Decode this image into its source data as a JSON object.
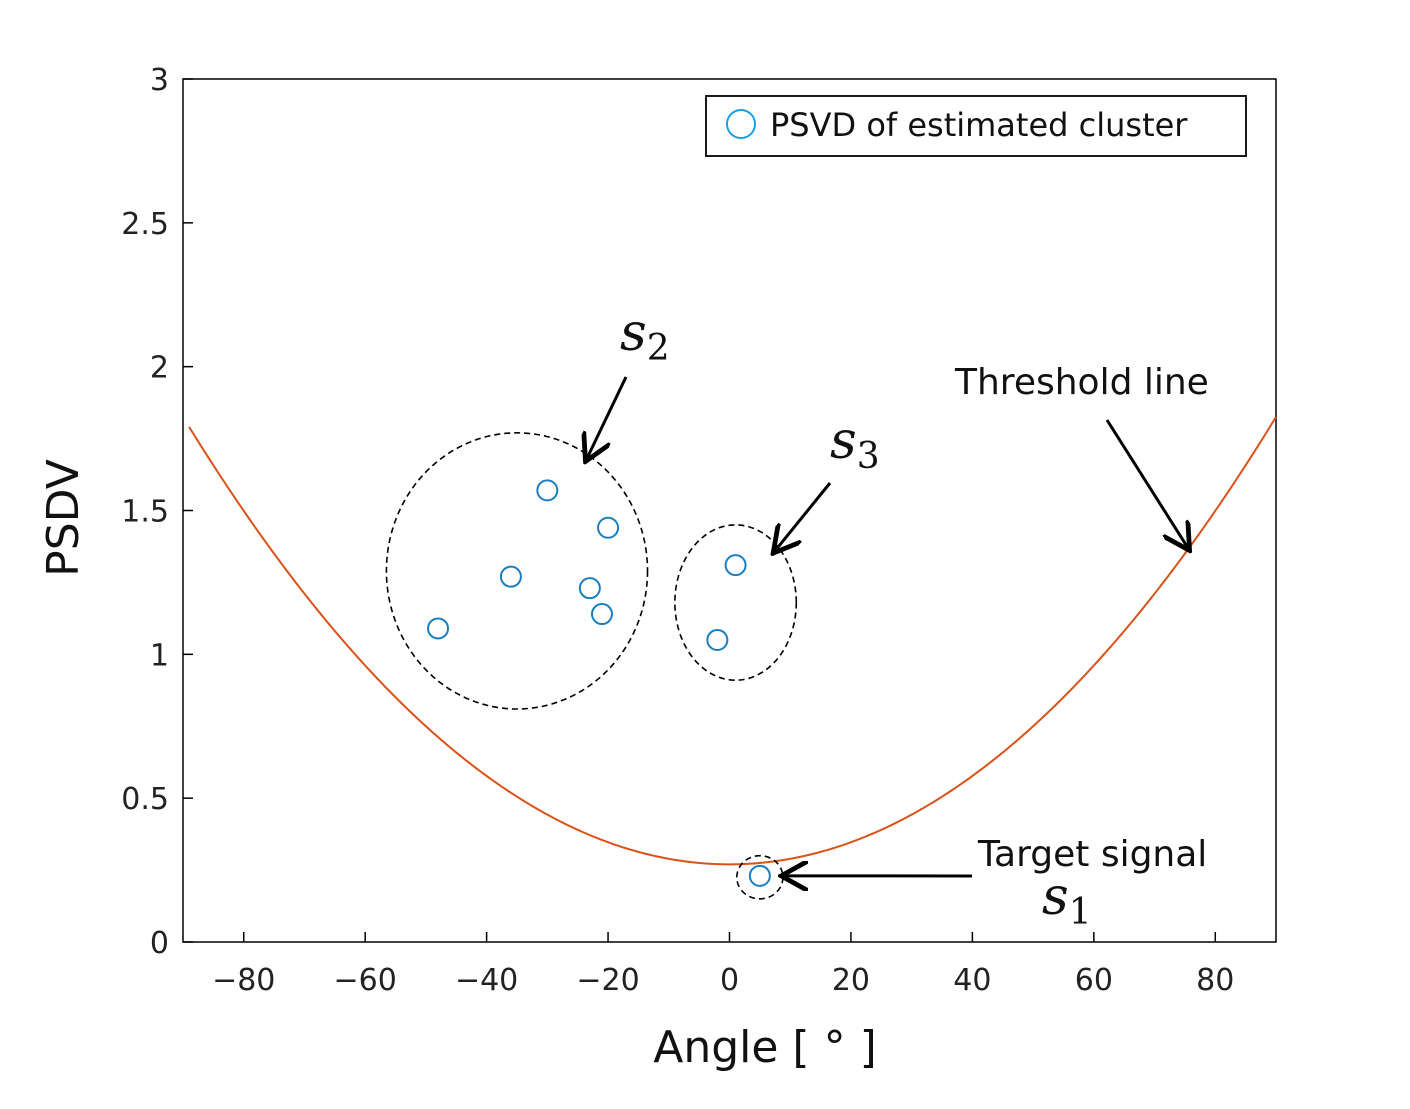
{
  "chart_data": {
    "type": "scatter",
    "title": "",
    "xlabel": "Angle [ ° ]",
    "ylabel": "PSDV",
    "xlim": [
      -90,
      90
    ],
    "ylim": [
      0,
      3
    ],
    "xticks": [
      -80,
      -60,
      -40,
      -20,
      0,
      20,
      40,
      60,
      80
    ],
    "xtick_labels": [
      "−80",
      "−60",
      "−40",
      "−20",
      "0",
      "20",
      "40",
      "60",
      "80"
    ],
    "yticks": [
      0,
      0.5,
      1,
      1.5,
      2,
      2.5,
      3
    ],
    "ytick_labels": [
      "0",
      "0.5",
      "1",
      "1.5",
      "2",
      "2.5",
      "3"
    ],
    "grid": false,
    "legend": {
      "position": "top-right",
      "entries": [
        "PSVD of estimated cluster"
      ]
    },
    "series": [
      {
        "name": "PSVD of estimated cluster",
        "kind": "scatter",
        "marker": "open-circle",
        "color": "#1a7fc1",
        "points": [
          {
            "x": -48,
            "y": 1.09
          },
          {
            "x": -36,
            "y": 1.27
          },
          {
            "x": -30,
            "y": 1.57
          },
          {
            "x": -23,
            "y": 1.23
          },
          {
            "x": -21,
            "y": 1.14
          },
          {
            "x": -20,
            "y": 1.44
          },
          {
            "x": -2,
            "y": 1.05
          },
          {
            "x": 1,
            "y": 1.31
          },
          {
            "x": 5,
            "y": 0.23
          }
        ]
      },
      {
        "kind": "line",
        "color": "#d95319",
        "curve": {
          "form": "quadratic",
          "vertex_x": 0,
          "vertex_y": 0.27,
          "coefficient": 0.000192
        },
        "x_range": [
          -89,
          90
        ]
      }
    ],
    "clusters": [
      {
        "label": "s",
        "subscript": "2",
        "center": [
          -35,
          1.29
        ],
        "radius_x": 21.5,
        "radius_y": 0.48
      },
      {
        "label": "s",
        "subscript": "3",
        "center": [
          1,
          1.18
        ],
        "radius_x": 10,
        "radius_y": 0.27
      },
      {
        "label": "s",
        "subscript": "1",
        "center": [
          5,
          0.225
        ],
        "radius_x": 3.8,
        "radius_y": 0.075
      }
    ],
    "annotations": [
      {
        "text": "Threshold line",
        "arrow_to": [
          75.5,
          1.37
        ]
      },
      {
        "text": "Target signal",
        "arrow_to": [
          9,
          0.23
        ]
      },
      {
        "math": "s",
        "subscript": "2",
        "arrow_to": [
          -23.5,
          1.68
        ]
      },
      {
        "math": "s",
        "subscript": "3",
        "arrow_to": [
          7.5,
          1.36
        ]
      },
      {
        "math": "s",
        "subscript": "1"
      }
    ]
  }
}
